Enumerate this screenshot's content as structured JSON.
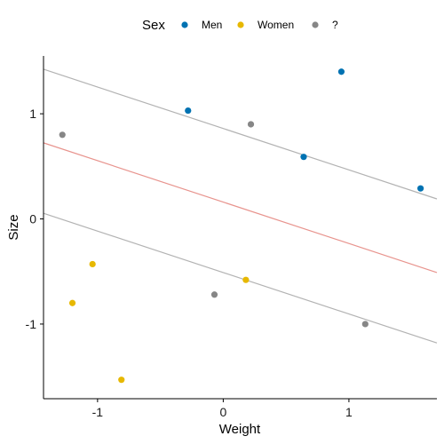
{
  "legend": {
    "title": "Sex",
    "entries": [
      {
        "label": "Men",
        "color": "#0072B2"
      },
      {
        "label": "Women",
        "color": "#E7B800"
      },
      {
        "label": "?",
        "color": "#868686"
      }
    ]
  },
  "chart_data": {
    "type": "scatter",
    "xlabel": "Weight",
    "ylabel": "Size",
    "xlim": [
      -1.43,
      1.7
    ],
    "ylim": [
      -1.71,
      1.55
    ],
    "x_ticks": [
      -1,
      0,
      1
    ],
    "y_ticks": [
      -1,
      0,
      1
    ],
    "grid": false,
    "legend_position": "top",
    "series": [
      {
        "name": "Men",
        "color": "#0072B2",
        "points": [
          {
            "x": -0.28,
            "y": 1.03
          },
          {
            "x": 0.94,
            "y": 1.4
          },
          {
            "x": 0.64,
            "y": 0.59
          },
          {
            "x": 1.57,
            "y": 0.29
          }
        ]
      },
      {
        "name": "Women",
        "color": "#E7B800",
        "points": [
          {
            "x": -1.04,
            "y": -0.43
          },
          {
            "x": -1.2,
            "y": -0.8
          },
          {
            "x": -0.81,
            "y": -1.53
          },
          {
            "x": 0.18,
            "y": -0.58
          }
        ]
      },
      {
        "name": "?",
        "color": "#868686",
        "points": [
          {
            "x": -1.28,
            "y": 0.8
          },
          {
            "x": 0.22,
            "y": 0.9
          },
          {
            "x": -0.07,
            "y": -0.72
          },
          {
            "x": 1.13,
            "y": -1.0
          }
        ]
      }
    ],
    "lines": [
      {
        "role": "upper",
        "color": "#B3B3B3",
        "intercept": 0.86,
        "slope": -0.394
      },
      {
        "role": "fit",
        "color": "#E8948E",
        "intercept": 0.16,
        "slope": -0.394
      },
      {
        "role": "lower",
        "color": "#B3B3B3",
        "intercept": -0.51,
        "slope": -0.394
      }
    ]
  }
}
